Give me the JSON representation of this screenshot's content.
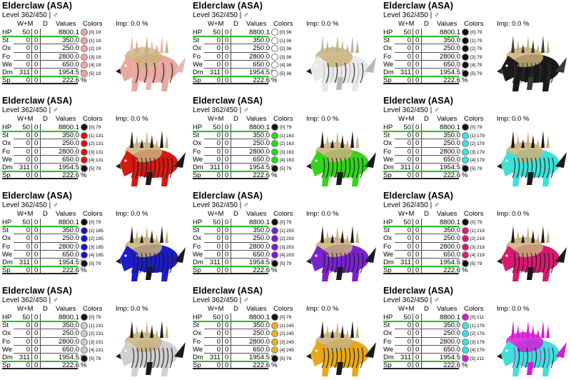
{
  "cards": [
    {
      "title": "Elderclaw (ASA)",
      "level": "Level 362/450 | ♂",
      "colors_label": "Colors",
      "imp": "Imp: 0.0 %",
      "w_m": "W+M",
      "d": "D",
      "values": "Values",
      "palette": [
        "#f4a4a4",
        "#f4a4a4",
        "#f4a4a4",
        "#f4a4a4",
        "#f4a4a4",
        "#f4a4a4"
      ],
      "cnums": [
        "[0] 19",
        "[1] 19",
        "[2] 19",
        "[3] 19",
        "[4] 19",
        "[5] 19"
      ],
      "body": "#e8a8a0",
      "accent": "#c9b07a",
      "mane": "#e9b8b0"
    },
    {
      "title": "Elderclaw (ASA)",
      "level": "Level 362/450 | ♂",
      "colors_label": "Colors",
      "imp": "Imp: 0.0 %",
      "w_m": "W+M",
      "d": "D",
      "values": "Values",
      "palette": [
        "#ffffff",
        "#ffffff",
        "#ffffff",
        "#ffffff",
        "#ffffff",
        "#ffffff"
      ],
      "cnums": [
        "[0] 36",
        "[1] 36",
        "[2] 36",
        "[3] 36",
        "[4] 36",
        "[5] 36"
      ],
      "body": "#e9e9e9",
      "accent": "#c9b07a",
      "mane": "#b8b8b8"
    },
    {
      "title": "Elderclaw (ASA)",
      "level": "Level 362/450 | ♂",
      "colors_label": "Colors",
      "imp": "Imp: 0.0 %",
      "w_m": "W+M",
      "d": "D",
      "values": "Values",
      "palette": [
        "#111111",
        "#111111",
        "#111111",
        "#111111",
        "#111111",
        "#111111"
      ],
      "cnums": [
        "[0] 79",
        "[1] 79",
        "[2] 79",
        "[3] 79",
        "[4] 79",
        "[5] 79"
      ],
      "body": "#1a1a1a",
      "accent": "#c9b07a",
      "mane": "#3a3a3a"
    },
    {
      "title": "Elderclaw (ASA)",
      "level": "Level 362/450 | ♂",
      "colors_label": "Colors",
      "imp": "Imp: 0.0 %",
      "w_m": "W+M",
      "d": "D",
      "values": "Values",
      "palette": [
        "#111111",
        "#e01010",
        "#e01010",
        "#e01010",
        "#e01010",
        "#111111"
      ],
      "cnums": [
        "[0] 79",
        "[1] 131",
        "[2] 131",
        "[3] 131",
        "[4] 131",
        "[5] 79"
      ],
      "body": "#d41a12",
      "accent": "#c9b07a",
      "mane": "#1a1a1a"
    },
    {
      "title": "Elderclaw (ASA)",
      "level": "Level 362/450 | ♂",
      "colors_label": "Colors",
      "imp": "Imp: 0.0 %",
      "w_m": "W+M",
      "d": "D",
      "values": "Values",
      "palette": [
        "#111111",
        "#22dd11",
        "#22dd11",
        "#22dd11",
        "#22dd11",
        "#111111"
      ],
      "cnums": [
        "[0] 79",
        "[1] 163",
        "[2] 163",
        "[3] 163",
        "[4] 163",
        "[5] 79"
      ],
      "body": "#33d41a",
      "accent": "#c9b07a",
      "mane": "#1a1a1a"
    },
    {
      "title": "Elderclaw (ASA)",
      "level": "Level 362/450 | ♂",
      "colors_label": "Colors",
      "imp": "Imp: 0.0 %",
      "w_m": "W+M",
      "d": "D",
      "values": "Values",
      "palette": [
        "#111111",
        "#33e6e0",
        "#33e6e0",
        "#33e6e0",
        "#33e6e0",
        "#111111"
      ],
      "cnums": [
        "[0] 79",
        "[1] 179",
        "[2] 179",
        "[3] 179",
        "[4] 179",
        "[5] 79"
      ],
      "body": "#3ee0d8",
      "accent": "#c9b07a",
      "mane": "#1a1a1a"
    },
    {
      "title": "Elderclaw (ASA)",
      "level": "Level 362/450 | ♂",
      "colors_label": "Colors",
      "imp": "Imp: 0.0 %",
      "w_m": "W+M",
      "d": "D",
      "values": "Values",
      "palette": [
        "#111111",
        "#1414cc",
        "#1414cc",
        "#1414cc",
        "#1414cc",
        "#111111"
      ],
      "cnums": [
        "[0] 79",
        "[1] 185",
        "[2] 195",
        "[3] 195",
        "[4] 195",
        "[5] 79"
      ],
      "body": "#1c1cc8",
      "accent": "#c9b07a",
      "mane": "#1a1a1a"
    },
    {
      "title": "Elderclaw (ASA)",
      "level": "Level 362/450 | ♂",
      "colors_label": "Colors",
      "imp": "Imp: 0.0 %",
      "w_m": "W+M",
      "d": "D",
      "values": "Values",
      "palette": [
        "#111111",
        "#7a1ad8",
        "#7a1ad8",
        "#7a1ad8",
        "#7a1ad8",
        "#111111"
      ],
      "cnums": [
        "[0] 79",
        "[1] 203",
        "[2] 203",
        "[3] 203",
        "[4] 203",
        "[5] 79"
      ],
      "body": "#7a22d0",
      "accent": "#c9b07a",
      "mane": "#1a1a1a"
    },
    {
      "title": "Elderclaw (ASA)",
      "level": "Level 362/450 | ♂",
      "colors_label": "Colors",
      "imp": "Imp: 0.0 %",
      "w_m": "W+M",
      "d": "D",
      "values": "Values",
      "palette": [
        "#111111",
        "#e0187a",
        "#e0187a",
        "#e0187a",
        "#e0187a",
        "#111111"
      ],
      "cnums": [
        "[0] 79",
        "[1] 219",
        "[2] 219",
        "[3] 219",
        "[4] 219",
        "[5] 79"
      ],
      "body": "#d81a6e",
      "accent": "#c9b07a",
      "mane": "#1a1a1a"
    },
    {
      "title": "Elderclaw (ASA)",
      "level": "Level 362/450 | ♂",
      "colors_label": "Colors",
      "imp": "Imp: 0.0 %",
      "w_m": "W+M",
      "d": "D",
      "values": "Values",
      "palette": [
        "#111111",
        "#cccccc",
        "#cccccc",
        "#cccccc",
        "#cccccc",
        "#111111"
      ],
      "cnums": [
        "[0] 79",
        "[1] 231",
        "[2] 231",
        "[3] 231",
        "[4] 231",
        "[5] 79"
      ],
      "body": "#d0d0d0",
      "accent": "#c9b07a",
      "mane": "#1a1a1a"
    },
    {
      "title": "Elderclaw (ASA)",
      "level": "Level 362/450 | ♂",
      "colors_label": "Colors",
      "imp": "Imp: 0.0 %",
      "w_m": "W+M",
      "d": "D",
      "values": "Values",
      "palette": [
        "#111111",
        "#f0b010",
        "#f0b010",
        "#f0b010",
        "#f0b010",
        "#111111"
      ],
      "cnums": [
        "[0] 79",
        "[1] 245",
        "[2] 245",
        "[3] 245",
        "[4] 245",
        "[5] 79"
      ],
      "body": "#e8a818",
      "accent": "#c9b07a",
      "mane": "#1a1a1a"
    },
    {
      "title": "Elderclaw (ASA)",
      "level": "Level 362/450 | ♂",
      "colors_label": "Colors",
      "imp": "Imp: 0.0 %",
      "w_m": "W+M",
      "d": "D",
      "values": "Values",
      "palette": [
        "#d81ad8",
        "#33e6e0",
        "#33e6e0",
        "#33e6e0",
        "#33e6e0",
        "#d81ad8"
      ],
      "cnums": [
        "[0] 211",
        "[1] 179",
        "[2] 179",
        "[3] 179",
        "[4] 179",
        "[5] 211"
      ],
      "body": "#3ee0d8",
      "accent": "#d81ad8",
      "mane": "#d81ad8"
    }
  ],
  "stats": [
    {
      "name": "HP",
      "wm": "50",
      "d": "0",
      "value": "8800.1",
      "unit": "",
      "bar": true
    },
    {
      "name": "St",
      "wm": "0",
      "d": "0",
      "value": "350.0",
      "unit": "",
      "bar": false
    },
    {
      "name": "Ox",
      "wm": "0",
      "d": "0",
      "value": "250.0",
      "unit": "",
      "bar": false
    },
    {
      "name": "Fo",
      "wm": "0",
      "d": "0",
      "value": "2800.0",
      "unit": "",
      "bar": false
    },
    {
      "name": "We",
      "wm": "0",
      "d": "0",
      "value": "650.0",
      "unit": "",
      "bar": false
    },
    {
      "name": "Dm",
      "wm": "311",
      "d": "0",
      "value": "1954.5",
      "unit": "%",
      "bar": true
    },
    {
      "name": "Sp",
      "wm": "0",
      "d": "0",
      "value": "222.6",
      "unit": "%",
      "bar": false
    }
  ]
}
